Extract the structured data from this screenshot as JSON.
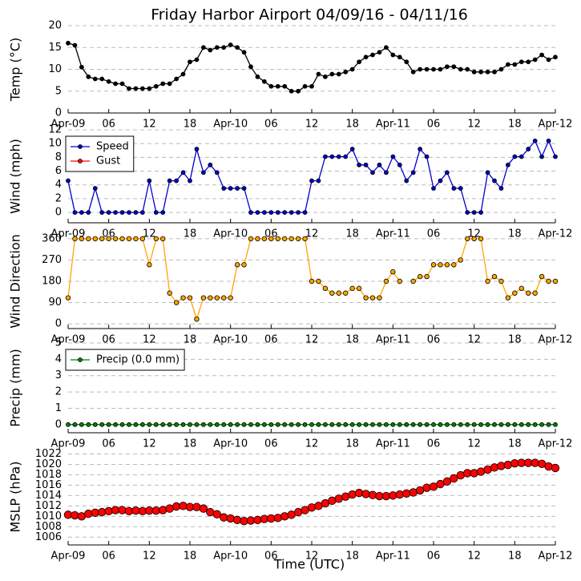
{
  "chart_data": [
    {
      "type": "line",
      "title": "Friday Harbor Airport 04/09/16 - 04/11/16",
      "ylabel": "Temp (°C)",
      "x": [
        0,
        1,
        2,
        3,
        4,
        5,
        6,
        7,
        8,
        9,
        10,
        11,
        12,
        13,
        14,
        15,
        16,
        17,
        18,
        19,
        20,
        21,
        22,
        23,
        24,
        25,
        26,
        27,
        28,
        29,
        30,
        31,
        32,
        33,
        34,
        35,
        36,
        37,
        38,
        39,
        40,
        41,
        42,
        43,
        44,
        45,
        46,
        47,
        48,
        49,
        50,
        51,
        52,
        53,
        54,
        55,
        56,
        57,
        58,
        59,
        60,
        61,
        62,
        63,
        64,
        65,
        66,
        67,
        68,
        69,
        70,
        71,
        72
      ],
      "series": [
        {
          "color": "#000000",
          "values": [
            16,
            15.5,
            10.5,
            8.3,
            7.8,
            7.8,
            7.2,
            6.7,
            6.7,
            5.6,
            5.6,
            5.6,
            5.6,
            6.1,
            6.7,
            6.7,
            7.8,
            8.9,
            11.7,
            12.2,
            15,
            14.4,
            15,
            15,
            15.6,
            15,
            13.9,
            10.6,
            8.3,
            7.2,
            6.1,
            6.1,
            6.1,
            5,
            5,
            6.1,
            6.1,
            8.9,
            8.3,
            8.9,
            8.9,
            9.4,
            10,
            11.7,
            12.8,
            13.3,
            13.9,
            15,
            13.3,
            12.8,
            11.7,
            9.4,
            10,
            10,
            10,
            10,
            10.6,
            10.6,
            10,
            10,
            9.4,
            9.4,
            9.4,
            9.4,
            10,
            11.1,
            11.1,
            11.7,
            11.7,
            12.2,
            13.3,
            12.2,
            12.8
          ]
        }
      ],
      "xlim": [
        0,
        72
      ],
      "xticks": [
        {
          "value": 0,
          "label": "Apr-09"
        },
        {
          "value": 6,
          "label": "06"
        },
        {
          "value": 12,
          "label": "12"
        },
        {
          "value": 18,
          "label": "18"
        },
        {
          "value": 24,
          "label": "Apr-10"
        },
        {
          "value": 30,
          "label": "06"
        },
        {
          "value": 36,
          "label": "12"
        },
        {
          "value": 42,
          "label": "18"
        },
        {
          "value": 48,
          "label": "Apr-11"
        },
        {
          "value": 54,
          "label": "06"
        },
        {
          "value": 60,
          "label": "12"
        },
        {
          "value": 66,
          "label": "18"
        },
        {
          "value": 72,
          "label": "Apr-12"
        }
      ],
      "ylim": [
        0,
        20
      ],
      "yticks": [
        0,
        5,
        10,
        15,
        20
      ],
      "grid": true
    },
    {
      "type": "line",
      "ylabel": "Wind (mph)",
      "x": [
        0,
        1,
        2,
        3,
        4,
        5,
        6,
        7,
        8,
        9,
        10,
        11,
        12,
        13,
        14,
        15,
        16,
        17,
        18,
        19,
        20,
        21,
        22,
        23,
        24,
        25,
        26,
        27,
        28,
        29,
        30,
        31,
        32,
        33,
        34,
        35,
        36,
        37,
        38,
        39,
        40,
        41,
        42,
        43,
        44,
        45,
        46,
        47,
        48,
        49,
        50,
        51,
        52,
        53,
        54,
        55,
        56,
        57,
        58,
        59,
        60,
        61,
        62,
        63,
        64,
        65,
        66,
        67,
        68,
        69,
        70,
        71,
        72
      ],
      "series": [
        {
          "name": "Speed",
          "color": "#0000cc",
          "values": [
            4.6,
            0,
            0,
            0,
            3.5,
            0,
            0,
            0,
            0,
            0,
            0,
            0,
            4.6,
            0,
            0,
            4.6,
            4.6,
            5.8,
            4.6,
            9.2,
            5.8,
            6.9,
            5.8,
            3.5,
            3.5,
            3.5,
            3.5,
            0,
            0,
            0,
            0,
            0,
            0,
            0,
            0,
            0,
            4.6,
            4.6,
            8.1,
            8.1,
            8.1,
            8.1,
            9.2,
            6.9,
            6.9,
            5.8,
            6.9,
            5.8,
            8.1,
            6.9,
            4.6,
            5.8,
            9.2,
            8.1,
            3.5,
            4.6,
            5.8,
            3.5,
            3.5,
            0,
            0,
            0,
            5.8,
            4.6,
            3.5,
            6.9,
            8.1,
            8.1,
            9.2,
            10.4,
            8.1,
            10.4,
            8.1
          ]
        },
        {
          "name": "Gust",
          "color": "#ff0000",
          "values": [
            null,
            null,
            null,
            null,
            null,
            null,
            null,
            null,
            null,
            null,
            null,
            null,
            null,
            null,
            null,
            null,
            null,
            null,
            null,
            null,
            null,
            null,
            null,
            null,
            null,
            null,
            null,
            null,
            null,
            null,
            null,
            null,
            null,
            null,
            null,
            null,
            null,
            null,
            null,
            null,
            null,
            null,
            null,
            null,
            null,
            null,
            null,
            null,
            null,
            null,
            null,
            null,
            null,
            null,
            null,
            null,
            null,
            null,
            null,
            null,
            null,
            null,
            null,
            null,
            null,
            null,
            null,
            null,
            null,
            null,
            null,
            null,
            null
          ]
        }
      ],
      "xlim": [
        0,
        72
      ],
      "xticks": [
        {
          "value": 0,
          "label": "Apr-09"
        },
        {
          "value": 6,
          "label": "06"
        },
        {
          "value": 12,
          "label": "12"
        },
        {
          "value": 18,
          "label": "18"
        },
        {
          "value": 24,
          "label": "Apr-10"
        },
        {
          "value": 30,
          "label": "06"
        },
        {
          "value": 36,
          "label": "12"
        },
        {
          "value": 42,
          "label": "18"
        },
        {
          "value": 48,
          "label": "Apr-11"
        },
        {
          "value": 54,
          "label": "06"
        },
        {
          "value": 60,
          "label": "12"
        },
        {
          "value": 66,
          "label": "18"
        },
        {
          "value": 72,
          "label": "Apr-12"
        }
      ],
      "ylim": [
        -1.5,
        12
      ],
      "yticks": [
        0,
        2,
        4,
        6,
        8,
        10,
        12
      ],
      "grid": true,
      "legend": "upper left"
    },
    {
      "type": "line",
      "ylabel": "Wind Direction",
      "x": [
        0,
        1,
        2,
        3,
        4,
        5,
        6,
        7,
        8,
        9,
        10,
        11,
        12,
        13,
        14,
        15,
        16,
        17,
        18,
        19,
        20,
        21,
        22,
        23,
        24,
        25,
        26,
        27,
        28,
        29,
        30,
        31,
        32,
        33,
        34,
        35,
        36,
        37,
        38,
        39,
        40,
        41,
        42,
        43,
        44,
        45,
        46,
        47,
        48,
        49,
        50,
        51,
        52,
        53,
        54,
        55,
        56,
        57,
        58,
        59,
        60,
        61,
        62,
        63,
        64,
        65,
        66,
        67,
        68,
        69,
        70,
        71,
        72
      ],
      "series": [
        {
          "color": "#ffa500",
          "values": [
            110,
            360,
            360,
            360,
            360,
            360,
            360,
            360,
            360,
            360,
            360,
            360,
            250,
            360,
            360,
            130,
            90,
            110,
            110,
            20,
            110,
            110,
            110,
            110,
            110,
            250,
            250,
            360,
            360,
            360,
            360,
            360,
            360,
            360,
            360,
            360,
            180,
            180,
            150,
            130,
            130,
            130,
            150,
            150,
            110,
            110,
            110,
            180,
            220,
            180,
            null,
            180,
            200,
            200,
            250,
            250,
            250,
            250,
            270,
            360,
            360,
            360,
            180,
            200,
            180,
            110,
            130,
            150,
            130,
            130,
            200,
            180,
            180
          ]
        }
      ],
      "xlim": [
        0,
        72
      ],
      "xticks": [
        {
          "value": 0,
          "label": "Apr-09"
        },
        {
          "value": 6,
          "label": "06"
        },
        {
          "value": 12,
          "label": "12"
        },
        {
          "value": 18,
          "label": "18"
        },
        {
          "value": 24,
          "label": "Apr-10"
        },
        {
          "value": 30,
          "label": "06"
        },
        {
          "value": 36,
          "label": "12"
        },
        {
          "value": 42,
          "label": "18"
        },
        {
          "value": 48,
          "label": "Apr-11"
        },
        {
          "value": 54,
          "label": "06"
        },
        {
          "value": 60,
          "label": "12"
        },
        {
          "value": 66,
          "label": "18"
        },
        {
          "value": 72,
          "label": "Apr-12"
        }
      ],
      "ylim": [
        -20,
        380
      ],
      "yticks": [
        0,
        90,
        180,
        270,
        360
      ],
      "grid": true
    },
    {
      "type": "line",
      "ylabel": "Precip (mm)",
      "x": [
        0,
        1,
        2,
        3,
        4,
        5,
        6,
        7,
        8,
        9,
        10,
        11,
        12,
        13,
        14,
        15,
        16,
        17,
        18,
        19,
        20,
        21,
        22,
        23,
        24,
        25,
        26,
        27,
        28,
        29,
        30,
        31,
        32,
        33,
        34,
        35,
        36,
        37,
        38,
        39,
        40,
        41,
        42,
        43,
        44,
        45,
        46,
        47,
        48,
        49,
        50,
        51,
        52,
        53,
        54,
        55,
        56,
        57,
        58,
        59,
        60,
        61,
        62,
        63,
        64,
        65,
        66,
        67,
        68,
        69,
        70,
        71,
        72
      ],
      "series": [
        {
          "name": "Precip (0.0 mm)",
          "color": "#008000",
          "values": [
            0,
            0,
            0,
            0,
            0,
            0,
            0,
            0,
            0,
            0,
            0,
            0,
            0,
            0,
            0,
            0,
            0,
            0,
            0,
            0,
            0,
            0,
            0,
            0,
            0,
            0,
            0,
            0,
            0,
            0,
            0,
            0,
            0,
            0,
            0,
            0,
            0,
            0,
            0,
            0,
            0,
            0,
            0,
            0,
            0,
            0,
            0,
            0,
            0,
            0,
            0,
            0,
            0,
            0,
            0,
            0,
            0,
            0,
            0,
            0,
            0,
            0,
            0,
            0,
            0,
            0,
            0,
            0,
            0,
            0,
            0,
            0,
            0
          ]
        }
      ],
      "xlim": [
        0,
        72
      ],
      "xticks": [
        {
          "value": 0,
          "label": "Apr-09"
        },
        {
          "value": 6,
          "label": "06"
        },
        {
          "value": 12,
          "label": "12"
        },
        {
          "value": 18,
          "label": "18"
        },
        {
          "value": 24,
          "label": "Apr-10"
        },
        {
          "value": 30,
          "label": "06"
        },
        {
          "value": 36,
          "label": "12"
        },
        {
          "value": 42,
          "label": "18"
        },
        {
          "value": 48,
          "label": "Apr-11"
        },
        {
          "value": 54,
          "label": "06"
        },
        {
          "value": 60,
          "label": "12"
        },
        {
          "value": 66,
          "label": "18"
        },
        {
          "value": 72,
          "label": "Apr-12"
        }
      ],
      "ylim": [
        -0.5,
        5
      ],
      "yticks": [
        0,
        1,
        2,
        3,
        4,
        5
      ],
      "grid": true,
      "legend": "upper left"
    },
    {
      "type": "line",
      "ylabel": "MSLP (hPa)",
      "xlabel": "Time (UTC)",
      "x": [
        0,
        1,
        2,
        3,
        4,
        5,
        6,
        7,
        8,
        9,
        10,
        11,
        12,
        13,
        14,
        15,
        16,
        17,
        18,
        19,
        20,
        21,
        22,
        23,
        24,
        25,
        26,
        27,
        28,
        29,
        30,
        31,
        32,
        33,
        34,
        35,
        36,
        37,
        38,
        39,
        40,
        41,
        42,
        43,
        44,
        45,
        46,
        47,
        48,
        49,
        50,
        51,
        52,
        53,
        54,
        55,
        56,
        57,
        58,
        59,
        60,
        61,
        62,
        63,
        64,
        65,
        66,
        67,
        68,
        69,
        70,
        71,
        72
      ],
      "series": [
        {
          "color": "#ff0000",
          "values": [
            1010.3,
            1010.2,
            1010.0,
            1010.5,
            1010.7,
            1010.8,
            1011.0,
            1011.2,
            1011.2,
            1011.0,
            1011.1,
            1011.0,
            1011.1,
            1011.1,
            1011.2,
            1011.5,
            1011.9,
            1012.0,
            1011.8,
            1011.8,
            1011.5,
            1010.8,
            1010.4,
            1009.8,
            1009.6,
            1009.3,
            1009.1,
            1009.2,
            1009.3,
            1009.5,
            1009.6,
            1009.7,
            1010.0,
            1010.3,
            1010.8,
            1011.2,
            1011.7,
            1012.0,
            1012.5,
            1013.0,
            1013.4,
            1013.8,
            1014.2,
            1014.5,
            1014.3,
            1014.1,
            1013.9,
            1013.9,
            1014.0,
            1014.2,
            1014.4,
            1014.6,
            1015.0,
            1015.5,
            1015.7,
            1016.2,
            1016.7,
            1017.3,
            1017.9,
            1018.3,
            1018.3,
            1018.6,
            1019.0,
            1019.4,
            1019.7,
            1019.9,
            1020.2,
            1020.3,
            1020.3,
            1020.3,
            1020.1,
            1019.6,
            1019.3
          ]
        }
      ],
      "xlim": [
        0,
        72
      ],
      "xticks": [
        {
          "value": 0,
          "label": "Apr-09"
        },
        {
          "value": 6,
          "label": "06"
        },
        {
          "value": 12,
          "label": "12"
        },
        {
          "value": 18,
          "label": "18"
        },
        {
          "value": 24,
          "label": "Apr-10"
        },
        {
          "value": 30,
          "label": "06"
        },
        {
          "value": 36,
          "label": "12"
        },
        {
          "value": 42,
          "label": "18"
        },
        {
          "value": 48,
          "label": "Apr-11"
        },
        {
          "value": 54,
          "label": "06"
        },
        {
          "value": 60,
          "label": "12"
        },
        {
          "value": 66,
          "label": "18"
        },
        {
          "value": 72,
          "label": "Apr-12"
        }
      ],
      "ylim": [
        1004.5,
        1023
      ],
      "yticks": [
        1006,
        1008,
        1010,
        1012,
        1014,
        1016,
        1018,
        1020,
        1022
      ],
      "grid": true
    }
  ]
}
